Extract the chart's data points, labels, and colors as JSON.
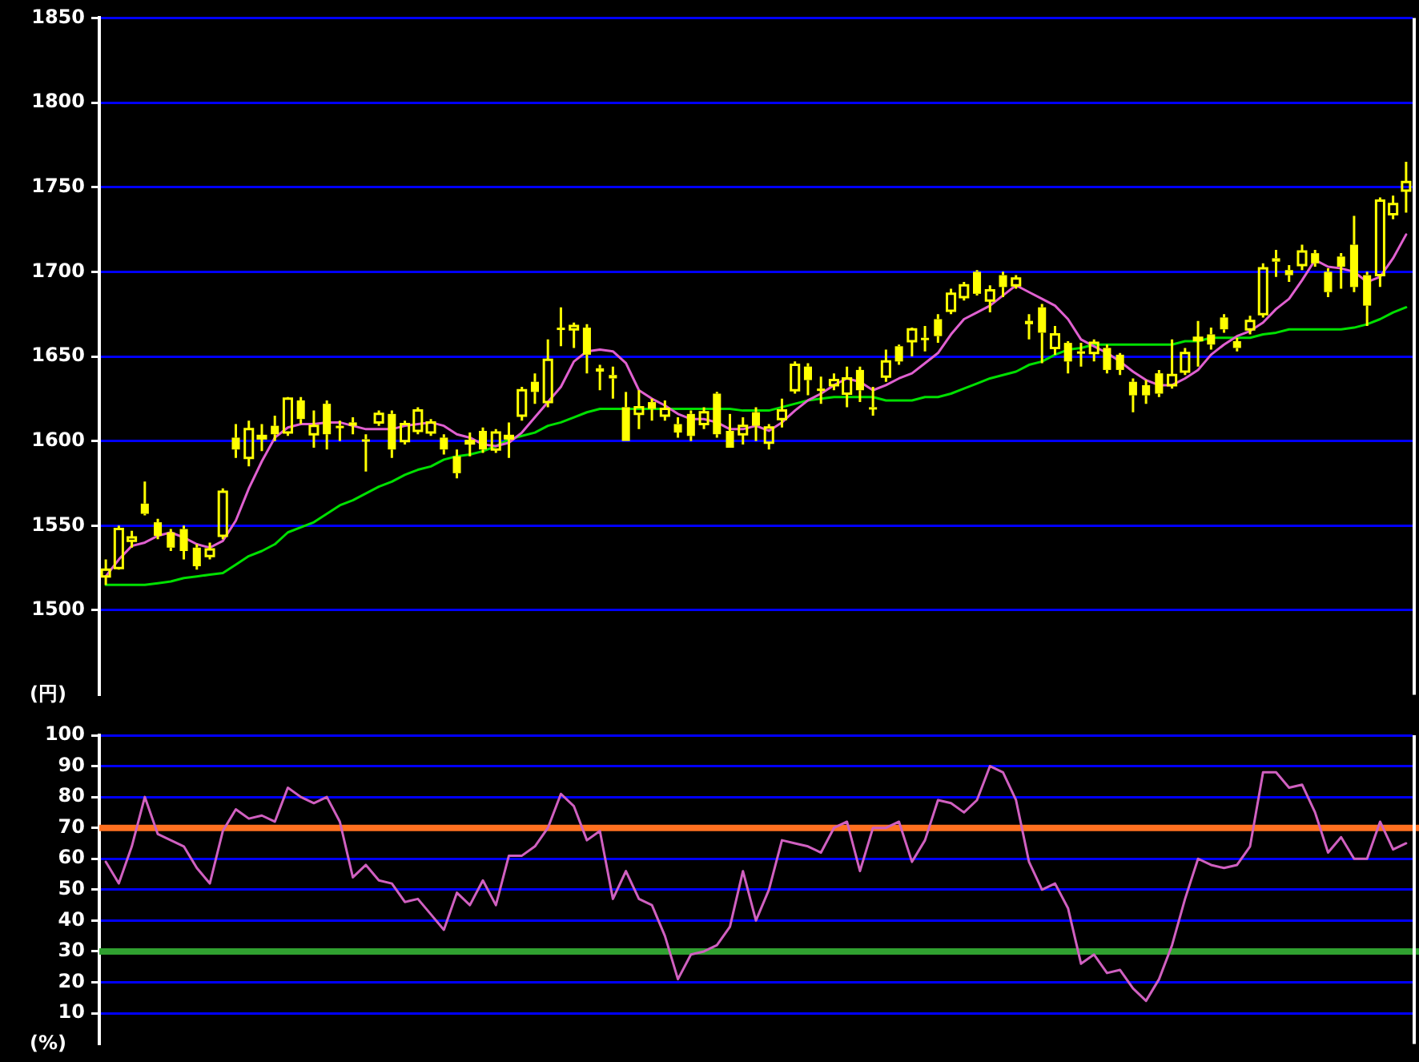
{
  "chart_data": [
    {
      "type": "candlestick",
      "ylabel": "(円)",
      "color": "#ffff00",
      "categories": [
        null,
        null,
        null,
        null,
        null,
        null,
        null,
        null,
        null,
        null,
        null,
        null,
        null,
        null,
        null,
        null,
        null,
        null,
        null,
        null,
        null,
        null,
        null,
        null,
        null,
        null,
        null,
        null,
        null,
        null,
        null,
        null,
        null,
        null,
        null,
        null,
        null,
        null,
        null,
        null,
        null,
        null,
        null,
        null,
        null,
        null,
        null,
        null,
        null,
        null,
        null,
        null,
        null,
        null,
        null,
        null,
        null,
        null,
        null,
        null,
        null,
        null,
        null,
        null,
        null,
        null,
        null,
        null,
        null,
        null,
        null,
        null,
        null,
        null,
        null,
        null,
        null,
        null,
        null,
        null,
        null,
        null,
        null,
        null,
        null,
        null,
        null,
        null,
        null,
        null,
        null,
        null,
        null,
        null,
        null,
        null,
        null,
        null,
        null,
        null,
        null
      ],
      "ohlc": [
        [
          1520,
          1530,
          1515,
          1524
        ],
        [
          1525,
          1550,
          1524,
          1548
        ],
        [
          1541,
          1547,
          1537,
          1543
        ],
        [
          1563,
          1576,
          1556,
          1557
        ],
        [
          1552,
          1554,
          1542,
          1544
        ],
        [
          1546,
          1548,
          1535,
          1537
        ],
        [
          1548,
          1550,
          1530,
          1535
        ],
        [
          1537,
          1539,
          1524,
          1526
        ],
        [
          1532,
          1540,
          1530,
          1536
        ],
        [
          1544,
          1572,
          1542,
          1570
        ],
        [
          1602,
          1610,
          1590,
          1595
        ],
        [
          1590,
          1612,
          1585,
          1607
        ],
        [
          1602,
          1610,
          1594,
          1603
        ],
        [
          1609,
          1615,
          1600,
          1604
        ],
        [
          1605,
          1626,
          1603,
          1625
        ],
        [
          1624,
          1626,
          1610,
          1613
        ],
        [
          1604,
          1618,
          1596,
          1609
        ],
        [
          1622,
          1624,
          1595,
          1604
        ],
        [
          1609,
          1612,
          1600,
          1608
        ],
        [
          1611,
          1614,
          1604,
          1609
        ],
        [
          1601,
          1604,
          1582,
          1600
        ],
        [
          1611,
          1618,
          1609,
          1616
        ],
        [
          1616,
          1618,
          1590,
          1595
        ],
        [
          1600,
          1612,
          1598,
          1610
        ],
        [
          1606,
          1620,
          1604,
          1618
        ],
        [
          1605,
          1613,
          1603,
          1611
        ],
        [
          1602,
          1604,
          1592,
          1595
        ],
        [
          1591,
          1595,
          1578,
          1581
        ],
        [
          1599,
          1605,
          1591,
          1600
        ],
        [
          1606,
          1608,
          1593,
          1595
        ],
        [
          1595,
          1607,
          1593,
          1605
        ],
        [
          1602,
          1611,
          1590,
          1603
        ],
        [
          1615,
          1632,
          1612,
          1630
        ],
        [
          1635,
          1640,
          1622,
          1629
        ],
        [
          1623,
          1660,
          1620,
          1648
        ],
        [
          1667,
          1679,
          1656,
          1666
        ],
        [
          1666,
          1670,
          1655,
          1668
        ],
        [
          1667,
          1669,
          1640,
          1651
        ],
        [
          1643,
          1645,
          1630,
          1641
        ],
        [
          1639,
          1644,
          1625,
          1637
        ],
        [
          1620,
          1629,
          1600,
          1600
        ],
        [
          1616,
          1630,
          1607,
          1620
        ],
        [
          1623,
          1625,
          1612,
          1619
        ],
        [
          1615,
          1624,
          1612,
          1619
        ],
        [
          1610,
          1614,
          1602,
          1605
        ],
        [
          1616,
          1618,
          1600,
          1603
        ],
        [
          1610,
          1620,
          1607,
          1617
        ],
        [
          1628,
          1629,
          1602,
          1604
        ],
        [
          1606,
          1616,
          1596,
          1596
        ],
        [
          1604,
          1614,
          1598,
          1609
        ],
        [
          1617,
          1620,
          1600,
          1609
        ],
        [
          1599,
          1610,
          1595,
          1608
        ],
        [
          1613,
          1625,
          1608,
          1618
        ],
        [
          1630,
          1647,
          1628,
          1645
        ],
        [
          1644,
          1646,
          1627,
          1636
        ],
        [
          1631,
          1638,
          1622,
          1630
        ],
        [
          1633,
          1640,
          1630,
          1636
        ],
        [
          1628,
          1644,
          1620,
          1637
        ],
        [
          1642,
          1644,
          1623,
          1630
        ],
        [
          1620,
          1632,
          1615,
          1619
        ],
        [
          1638,
          1654,
          1635,
          1647
        ],
        [
          1656,
          1657,
          1645,
          1647
        ],
        [
          1659,
          1667,
          1650,
          1666
        ],
        [
          1661,
          1668,
          1653,
          1660
        ],
        [
          1672,
          1675,
          1658,
          1662
        ],
        [
          1677,
          1690,
          1675,
          1687
        ],
        [
          1685,
          1694,
          1683,
          1692
        ],
        [
          1700,
          1701,
          1686,
          1687
        ],
        [
          1683,
          1692,
          1676,
          1689
        ],
        [
          1698,
          1700,
          1685,
          1691
        ],
        [
          1692,
          1698,
          1690,
          1696
        ],
        [
          1671,
          1675,
          1660,
          1669
        ],
        [
          1679,
          1681,
          1646,
          1664
        ],
        [
          1655,
          1668,
          1651,
          1663
        ],
        [
          1658,
          1659,
          1640,
          1647
        ],
        [
          1653,
          1658,
          1644,
          1652
        ],
        [
          1652,
          1660,
          1647,
          1658
        ],
        [
          1655,
          1657,
          1640,
          1642
        ],
        [
          1651,
          1652,
          1639,
          1642
        ],
        [
          1635,
          1637,
          1617,
          1627
        ],
        [
          1633,
          1636,
          1622,
          1627
        ],
        [
          1640,
          1642,
          1626,
          1628
        ],
        [
          1633,
          1660,
          1631,
          1639
        ],
        [
          1641,
          1655,
          1639,
          1652
        ],
        [
          1660,
          1671,
          1644,
          1661
        ],
        [
          1663,
          1667,
          1654,
          1657
        ],
        [
          1673,
          1675,
          1664,
          1666
        ],
        [
          1659,
          1661,
          1653,
          1655
        ],
        [
          1666,
          1674,
          1663,
          1671
        ],
        [
          1675,
          1705,
          1673,
          1702
        ],
        [
          1708,
          1713,
          1697,
          1706
        ],
        [
          1701,
          1704,
          1694,
          1698
        ],
        [
          1704,
          1716,
          1701,
          1712
        ],
        [
          1711,
          1713,
          1703,
          1705
        ],
        [
          1700,
          1702,
          1685,
          1688
        ],
        [
          1709,
          1711,
          1690,
          1703
        ],
        [
          1716,
          1733,
          1688,
          1691
        ],
        [
          1698,
          1700,
          1668,
          1680
        ],
        [
          1698,
          1744,
          1691,
          1742
        ],
        [
          1734,
          1745,
          1731,
          1740
        ],
        [
          1748,
          1765,
          1735,
          1753
        ]
      ],
      "series": [
        {
          "type": "line",
          "color": "#e060d0",
          "values": [
            1520,
            1530,
            1538,
            1540,
            1544,
            1546,
            1543,
            1539,
            1537,
            1541,
            1553,
            1572,
            1588,
            1602,
            1608,
            1610,
            1610,
            1611,
            1611,
            1609,
            1607,
            1607,
            1607,
            1609,
            1610,
            1611,
            1609,
            1604,
            1602,
            1598,
            1597,
            1599,
            1605,
            1614,
            1623,
            1632,
            1647,
            1653,
            1654,
            1653,
            1646,
            1630,
            1625,
            1621,
            1616,
            1613,
            1613,
            1611,
            1607,
            1607,
            1609,
            1606,
            1611,
            1618,
            1624,
            1628,
            1633,
            1637,
            1635,
            1630,
            1633,
            1637,
            1640,
            1646,
            1652,
            1663,
            1672,
            1676,
            1680,
            1686,
            1692,
            1688,
            1684,
            1680,
            1672,
            1660,
            1656,
            1652,
            1647,
            1641,
            1636,
            1633,
            1633,
            1637,
            1642,
            1651,
            1657,
            1662,
            1665,
            1670,
            1678,
            1684,
            1695,
            1707,
            1703,
            1702,
            1700,
            1694,
            1697,
            1708,
            1722
          ]
        },
        {
          "type": "line",
          "color": "#00e000",
          "values": [
            1515,
            1515,
            1515,
            1515,
            1516,
            1517,
            1519,
            1520,
            1521,
            1522,
            1527,
            1532,
            1535,
            1539,
            1546,
            1549,
            1552,
            1557,
            1562,
            1565,
            1569,
            1573,
            1576,
            1580,
            1583,
            1585,
            1589,
            1591,
            1592,
            1594,
            1597,
            1601,
            1603,
            1605,
            1609,
            1611,
            1614,
            1617,
            1619,
            1619,
            1619,
            1619,
            1619,
            1619,
            1619,
            1619,
            1619,
            1619,
            1619,
            1618,
            1618,
            1618,
            1620,
            1622,
            1624,
            1625,
            1626,
            1626,
            1626,
            1626,
            1624,
            1624,
            1624,
            1626,
            1626,
            1628,
            1631,
            1634,
            1637,
            1639,
            1641,
            1645,
            1647,
            1651,
            1654,
            1655,
            1657,
            1657,
            1657,
            1657,
            1657,
            1657,
            1657,
            1659,
            1659,
            1661,
            1661,
            1661,
            1661,
            1663,
            1664,
            1666,
            1666,
            1666,
            1666,
            1666,
            1667,
            1669,
            1672,
            1676,
            1679
          ]
        }
      ],
      "ylim": [
        1450,
        1850
      ],
      "yticks": [
        1500,
        1550,
        1600,
        1650,
        1700,
        1750,
        1800,
        1850
      ],
      "grid": "y",
      "tick_labels": "y"
    },
    {
      "type": "line",
      "ylabel": "(%)",
      "categories": [
        null,
        null,
        null,
        null,
        null,
        null,
        null,
        null,
        null,
        null,
        null,
        null,
        null,
        null,
        null,
        null,
        null,
        null,
        null,
        null,
        null,
        null,
        null,
        null,
        null,
        null,
        null,
        null,
        null,
        null,
        null,
        null,
        null,
        null,
        null,
        null,
        null,
        null,
        null,
        null,
        null,
        null,
        null,
        null,
        null,
        null,
        null,
        null,
        null,
        null,
        null,
        null,
        null,
        null,
        null,
        null,
        null,
        null,
        null,
        null,
        null,
        null,
        null,
        null,
        null,
        null,
        null,
        null,
        null,
        null,
        null,
        null,
        null,
        null,
        null,
        null,
        null,
        null,
        null,
        null,
        null,
        null,
        null,
        null,
        null,
        null,
        null,
        null,
        null,
        null,
        null,
        null,
        null,
        null,
        null,
        null,
        null,
        null,
        null,
        null,
        null
      ],
      "series": [
        {
          "color": "#d060c0",
          "values": [
            59,
            52,
            64,
            80,
            68,
            66,
            64,
            57,
            52,
            69,
            76,
            73,
            74,
            72,
            83,
            80,
            78,
            80,
            72,
            54,
            58,
            53,
            52,
            46,
            47,
            42,
            37,
            49,
            45,
            53,
            45,
            61,
            61,
            64,
            70,
            81,
            77,
            66,
            69,
            47,
            56,
            47,
            45,
            35,
            21,
            29,
            30,
            32,
            38,
            56,
            40,
            50,
            66,
            65,
            64,
            62,
            70,
            72,
            56,
            70,
            70,
            72,
            59,
            66,
            79,
            78,
            75,
            79,
            90,
            88,
            79,
            59,
            50,
            52,
            44,
            26,
            29,
            23,
            24,
            18,
            14,
            21,
            32,
            47,
            60,
            58,
            57,
            58,
            64,
            88,
            88,
            83,
            84,
            75,
            62,
            67,
            60,
            60,
            72,
            63,
            65
          ]
        }
      ],
      "ylim": [
        0,
        100
      ],
      "yticks": [
        10,
        20,
        30,
        40,
        50,
        60,
        70,
        80,
        90,
        100
      ],
      "grid": "y",
      "tick_labels": "y",
      "ref_lines": [
        {
          "axis": "y",
          "value": 70,
          "color": "#ff7020"
        },
        {
          "axis": "y",
          "value": 30,
          "color": "#30a030"
        }
      ]
    }
  ]
}
